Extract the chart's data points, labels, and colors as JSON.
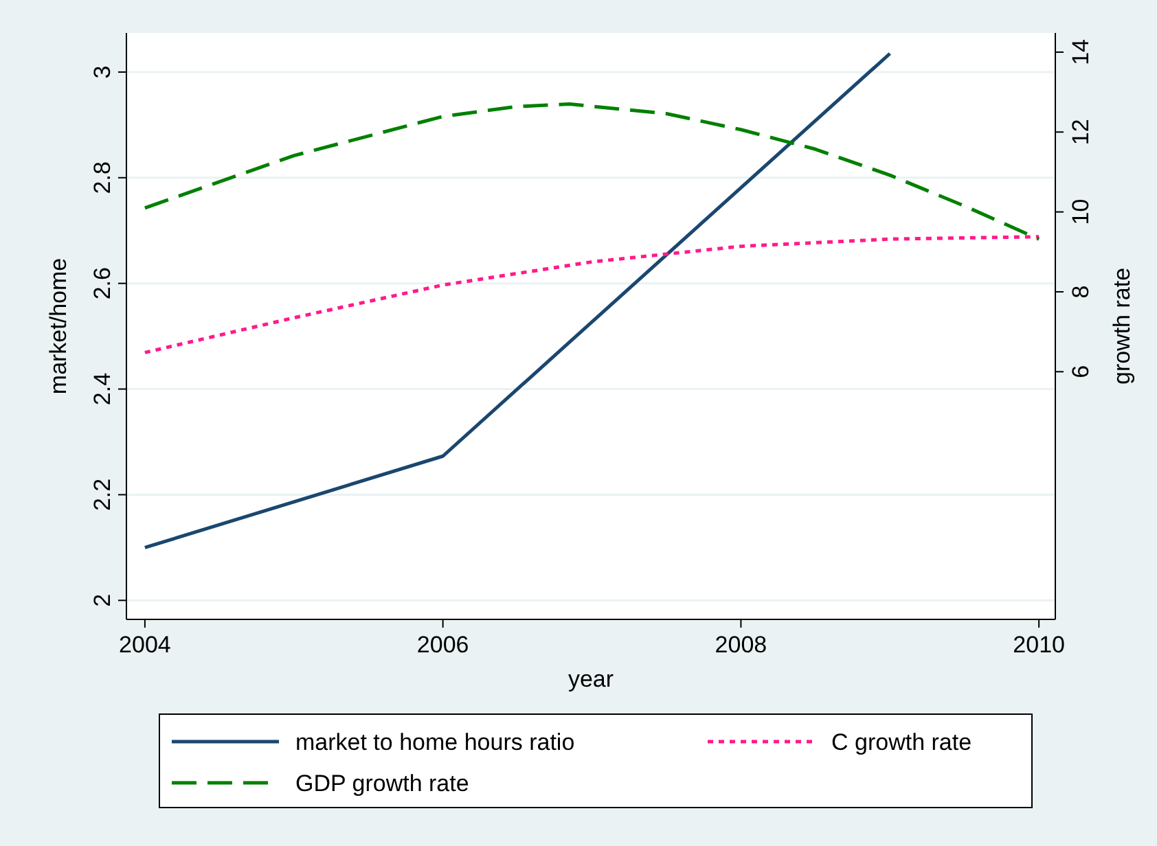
{
  "chart_data": {
    "type": "line",
    "xlabel": "year",
    "ylabel": "market/home",
    "y2label": "growth rate",
    "xlim": [
      2003.876,
      2010.11
    ],
    "xticks": [
      2004,
      2006,
      2008,
      2010
    ],
    "ylim": [
      1.964,
      3.074
    ],
    "yticks": [
      2,
      2.2,
      2.4,
      2.6,
      2.8,
      3
    ],
    "y2lim": [
      -0.2,
      14.48
    ],
    "y2ticks": [
      6,
      8,
      10,
      12,
      14
    ],
    "grid": "y",
    "legend": "bottom",
    "series": [
      {
        "name": "market to home hours ratio",
        "color": "#1a476f",
        "line_style": "solid",
        "x": [
          2004,
          2006,
          2009
        ],
        "values": [
          2.1,
          2.273,
          3.035
        ]
      },
      {
        "name": "C growth rate",
        "color": "#ff1a8c",
        "line_style": "dotted",
        "axis": "y2",
        "x": [
          2004,
          2005,
          2006,
          2007,
          2008,
          2009,
          2010
        ],
        "values": [
          6.48,
          7.35,
          8.17,
          8.75,
          9.14,
          9.32,
          9.38
        ]
      },
      {
        "name": "GDP growth rate",
        "color": "#008000",
        "line_style": "dashed",
        "axis": "y2",
        "x": [
          2004,
          2005,
          2006,
          2006.5,
          2006.85,
          2007.5,
          2008,
          2008.5,
          2009,
          2009.5,
          2010
        ],
        "values": [
          10.1,
          11.41,
          12.39,
          12.64,
          12.7,
          12.46,
          12.06,
          11.57,
          10.92,
          10.15,
          9.32
        ]
      }
    ]
  }
}
